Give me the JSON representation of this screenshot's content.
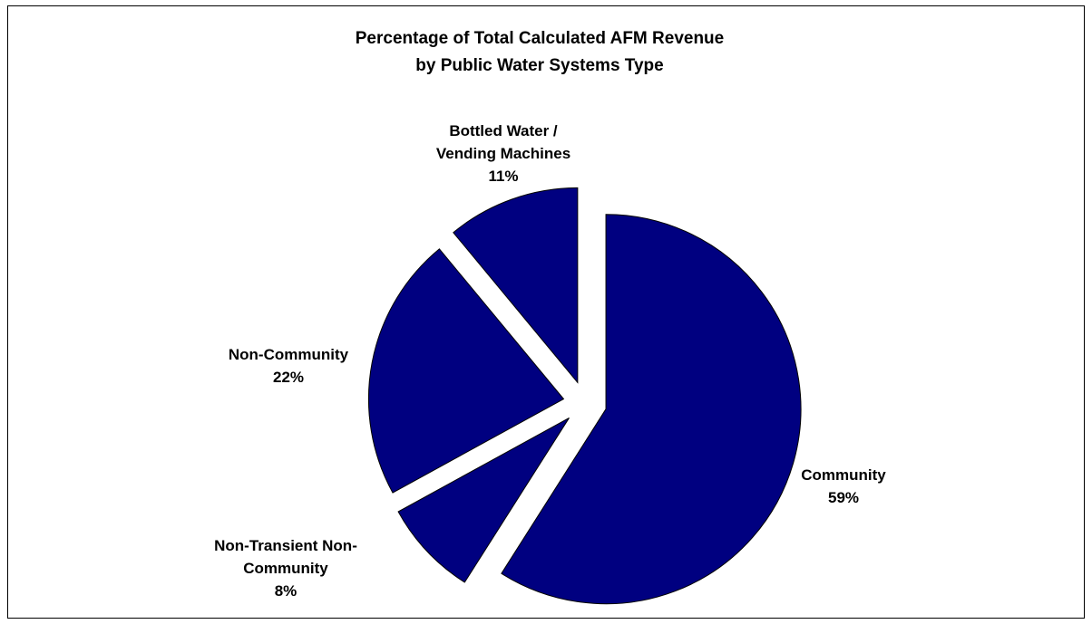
{
  "chart_data": {
    "type": "pie",
    "title_lines": [
      "Percentage of Total Calculated AFM Revenue",
      "by Public Water Systems Type"
    ],
    "slices": [
      {
        "label_lines": [
          "Community"
        ],
        "pct_label": "59%",
        "value": 59
      },
      {
        "label_lines": [
          "Non-Transient Non-",
          "Community"
        ],
        "pct_label": "8%",
        "value": 8
      },
      {
        "label_lines": [
          "Non-Community"
        ],
        "pct_label": "22%",
        "value": 22
      },
      {
        "label_lines": [
          "Bottled Water /",
          "Vending Machines"
        ],
        "pct_label": "11%",
        "value": 11
      }
    ],
    "exploded": true,
    "legend": "none",
    "colors": {
      "slice_fill": "#000080",
      "slice_stroke": "#000000"
    }
  }
}
